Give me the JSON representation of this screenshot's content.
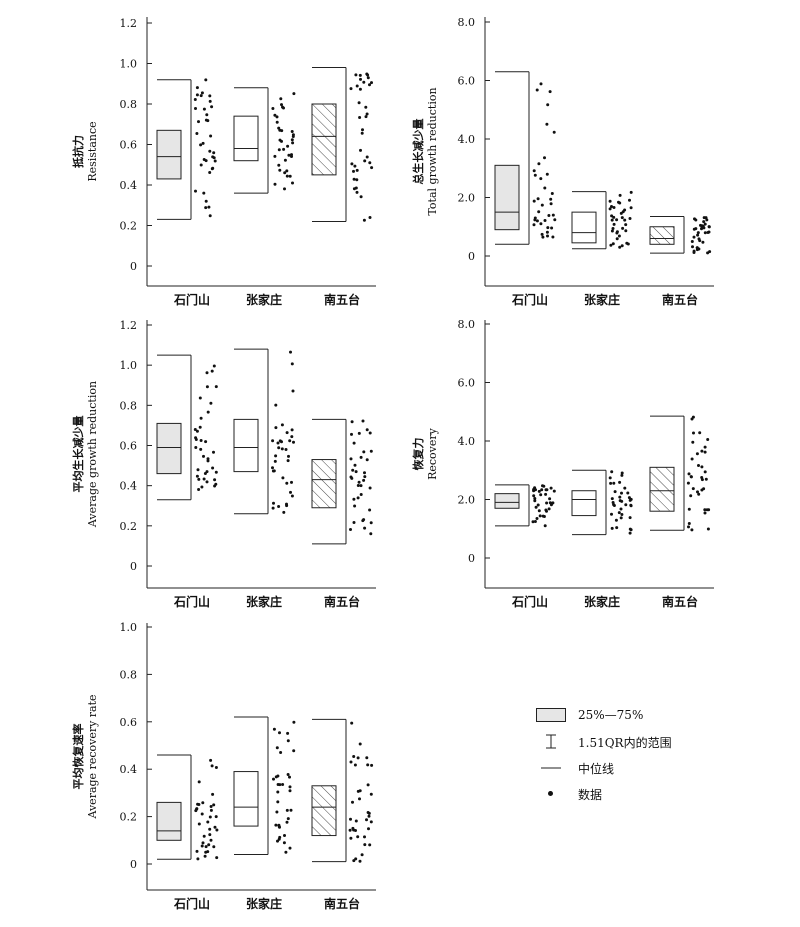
{
  "chart_data": [
    {
      "type": "box",
      "ylabel_cn": "抵抗力",
      "ylabel_en": "Resistance",
      "ylim": [
        0,
        1.2
      ],
      "yticks": [
        "0",
        "0.2",
        "0.4",
        "0.6",
        "0.8",
        "1.0",
        "1.2"
      ],
      "categories": [
        "石门山",
        "张家庄",
        "南五台"
      ],
      "boxes": [
        {
          "category": "石门山",
          "q1": 0.43,
          "median": 0.54,
          "q3": 0.67,
          "whisker_low": 0.23,
          "whisker_high": 0.92,
          "fill": "gray"
        },
        {
          "category": "张家庄",
          "q1": 0.52,
          "median": 0.58,
          "q3": 0.74,
          "whisker_low": 0.36,
          "whisker_high": 0.88,
          "fill": "white"
        },
        {
          "category": "南五台",
          "q1": 0.45,
          "median": 0.64,
          "q3": 0.8,
          "whisker_low": 0.22,
          "whisker_high": 0.98,
          "fill": "hatch"
        }
      ]
    },
    {
      "type": "box",
      "ylabel_cn": "总生长减少量",
      "ylabel_en": "Total growth reduction",
      "ylim": [
        0,
        8.0
      ],
      "yticks": [
        "0",
        "2.0",
        "4.0",
        "6.0",
        "8.0"
      ],
      "categories": [
        "石门山",
        "张家庄",
        "南五台"
      ],
      "boxes": [
        {
          "category": "石门山",
          "q1": 0.9,
          "median": 1.5,
          "q3": 3.1,
          "whisker_low": 0.4,
          "whisker_high": 6.3,
          "fill": "gray"
        },
        {
          "category": "张家庄",
          "q1": 0.45,
          "median": 0.8,
          "q3": 1.5,
          "whisker_low": 0.25,
          "whisker_high": 2.2,
          "fill": "white"
        },
        {
          "category": "南五台",
          "q1": 0.4,
          "median": 0.6,
          "q3": 1.0,
          "whisker_low": 0.1,
          "whisker_high": 1.35,
          "fill": "hatch"
        }
      ]
    },
    {
      "type": "box",
      "ylabel_cn": "平均生长减少量",
      "ylabel_en": "Average growth reduction",
      "ylim": [
        0,
        1.2
      ],
      "yticks": [
        "0",
        "0.2",
        "0.4",
        "0.6",
        "0.8",
        "1.0",
        "1.2"
      ],
      "categories": [
        "石门山",
        "张家庄",
        "南五台"
      ],
      "boxes": [
        {
          "category": "石门山",
          "q1": 0.46,
          "median": 0.59,
          "q3": 0.71,
          "whisker_low": 0.33,
          "whisker_high": 1.05,
          "fill": "gray"
        },
        {
          "category": "张家庄",
          "q1": 0.47,
          "median": 0.59,
          "q3": 0.73,
          "whisker_low": 0.26,
          "whisker_high": 1.08,
          "fill": "white"
        },
        {
          "category": "南五台",
          "q1": 0.29,
          "median": 0.43,
          "q3": 0.53,
          "whisker_low": 0.11,
          "whisker_high": 0.73,
          "fill": "hatch"
        }
      ]
    },
    {
      "type": "box",
      "ylabel_cn": "恢复力",
      "ylabel_en": "Recovery",
      "ylim": [
        0,
        8.0
      ],
      "yticks": [
        "0",
        "2.0",
        "4.0",
        "6.0",
        "8.0"
      ],
      "categories": [
        "石门山",
        "张家庄",
        "南五台"
      ],
      "boxes": [
        {
          "category": "石门山",
          "q1": 1.7,
          "median": 1.9,
          "q3": 2.2,
          "whisker_low": 1.1,
          "whisker_high": 2.5,
          "fill": "gray"
        },
        {
          "category": "张家庄",
          "q1": 1.45,
          "median": 2.0,
          "q3": 2.3,
          "whisker_low": 0.8,
          "whisker_high": 3.0,
          "fill": "white"
        },
        {
          "category": "南五台",
          "q1": 1.6,
          "median": 2.3,
          "q3": 3.1,
          "whisker_low": 0.95,
          "whisker_high": 4.85,
          "fill": "hatch"
        }
      ]
    },
    {
      "type": "box",
      "ylabel_cn": "平均恢复速率",
      "ylabel_en": "Average recovery rate",
      "ylim": [
        0,
        1.0
      ],
      "yticks": [
        "0",
        "0.2",
        "0.4",
        "0.6",
        "0.8",
        "1.0"
      ],
      "categories": [
        "石门山",
        "张家庄",
        "南五台"
      ],
      "boxes": [
        {
          "category": "石门山",
          "q1": 0.1,
          "median": 0.14,
          "q3": 0.26,
          "whisker_low": 0.02,
          "whisker_high": 0.46,
          "fill": "gray"
        },
        {
          "category": "张家庄",
          "q1": 0.16,
          "median": 0.24,
          "q3": 0.39,
          "whisker_low": 0.04,
          "whisker_high": 0.62,
          "fill": "white"
        },
        {
          "category": "南五台",
          "q1": 0.12,
          "median": 0.24,
          "q3": 0.33,
          "whisker_low": 0.01,
          "whisker_high": 0.61,
          "fill": "hatch"
        }
      ]
    }
  ],
  "legend": {
    "box_label": "25%—75%",
    "whisker_label": "1.51QR内的范围",
    "median_label": "中位线",
    "data_label": "数据"
  },
  "colors": {
    "box_gray": "#e6e6e6",
    "stroke": "#222222",
    "dot": "#111111"
  }
}
